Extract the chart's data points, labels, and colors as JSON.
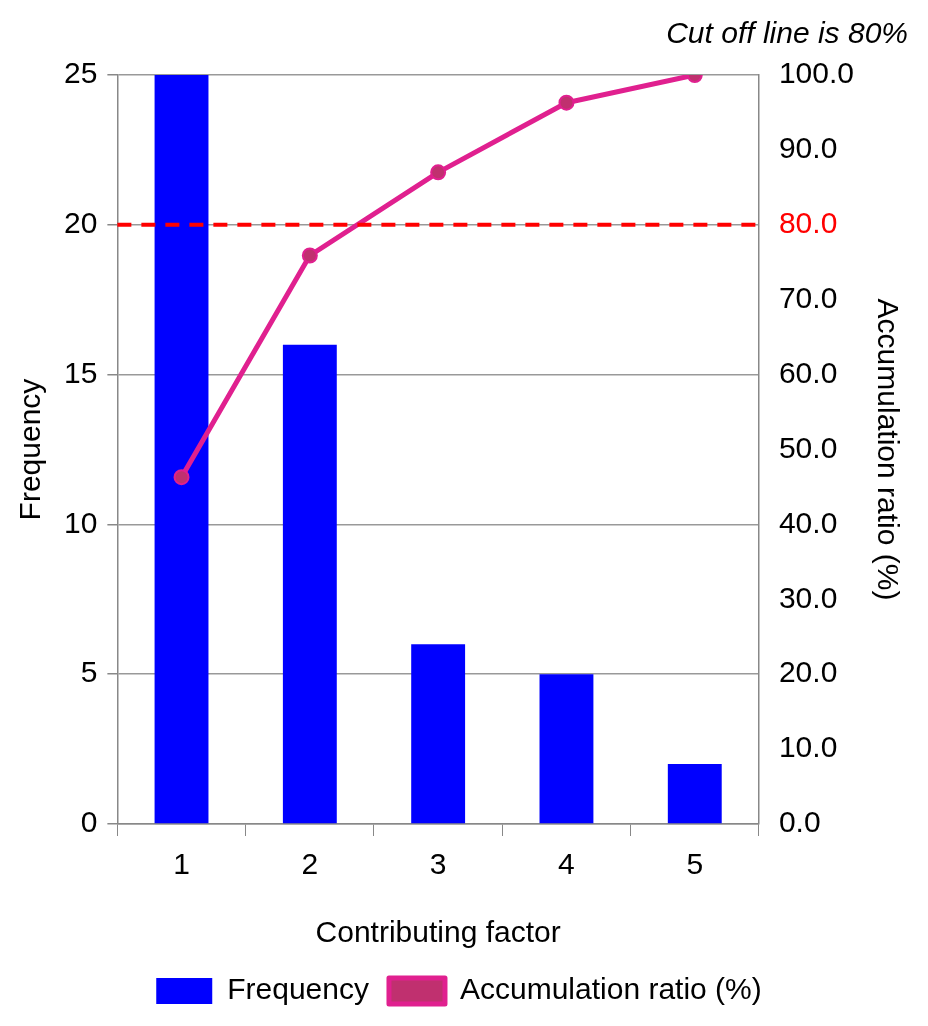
{
  "chart_data": {
    "type": "bar",
    "xlabel": "Contributing factor",
    "ylabel": "Frequency",
    "y2label": "Accumulation ratio (%)",
    "annotations": [
      "Cut off line is 80%"
    ],
    "categories": [
      "1",
      "2",
      "3",
      "4",
      "5"
    ],
    "series": [
      {
        "name": "Frequency",
        "color": "#0000ff",
        "values": [
          25,
          16,
          6,
          5,
          2
        ]
      },
      {
        "name": "Accumulation ratio (%)",
        "type": "line",
        "axis": "y2",
        "color": "#e0208f",
        "marker": "circle",
        "values": [
          46.3,
          75.9,
          87.0,
          96.3,
          100.0
        ]
      }
    ],
    "ylim": [
      0,
      25
    ],
    "yticks": [
      0,
      5,
      10,
      15,
      20,
      25
    ],
    "y2lim": [
      0,
      100
    ],
    "y2ticks": [
      {
        "value": 0,
        "label": "0.0"
      },
      {
        "value": 10,
        "label": "10.0"
      },
      {
        "value": 20,
        "label": "20.0"
      },
      {
        "value": 30,
        "label": "30.0"
      },
      {
        "value": 40,
        "label": "40.0"
      },
      {
        "value": 50,
        "label": "50.0"
      },
      {
        "value": 60,
        "label": "60.0"
      },
      {
        "value": 70,
        "label": "70.0"
      },
      {
        "value": 80,
        "label": "80.0"
      },
      {
        "value": 90,
        "label": "90.0"
      },
      {
        "value": 100,
        "label": "100.0"
      }
    ],
    "ref_lines": [
      {
        "axis": "y2",
        "value": 80,
        "color": "#ff0000",
        "line_style": "dashed"
      }
    ],
    "grid": "y",
    "legend": "bottom"
  }
}
